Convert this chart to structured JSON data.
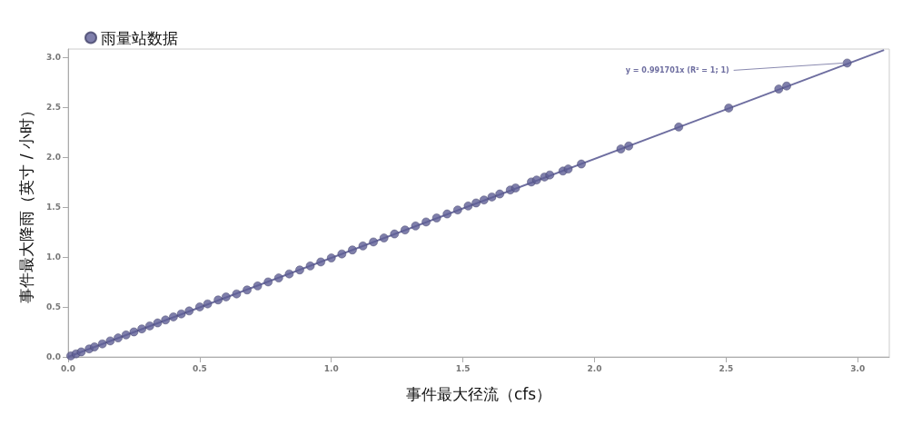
{
  "chart_data": {
    "type": "scatter",
    "xlabel": "事件最大径流（cfs）",
    "ylabel": "事件最大降雨（英寸 / 小时）",
    "xlim": [
      0,
      3.12
    ],
    "ylim": [
      0,
      3.08
    ],
    "xticks": [
      {
        "value": 0,
        "label": "0.0"
      },
      {
        "value": 0.5,
        "label": "0.5"
      },
      {
        "value": 1,
        "label": "1.0"
      },
      {
        "value": 1.5,
        "label": "1.5"
      },
      {
        "value": 2,
        "label": "2.0"
      },
      {
        "value": 2.5,
        "label": "2.5"
      },
      {
        "value": 3,
        "label": "3.0"
      }
    ],
    "yticks": [
      {
        "value": 0,
        "label": "0.0"
      },
      {
        "value": 0.5,
        "label": "0.5"
      },
      {
        "value": 1,
        "label": "1.0"
      },
      {
        "value": 1.5,
        "label": "1.5"
      },
      {
        "value": 2,
        "label": "2.0"
      },
      {
        "value": 2.5,
        "label": "2.5"
      },
      {
        "value": 3,
        "label": "3.0"
      }
    ],
    "grid": false,
    "legend": "top left",
    "series": [
      {
        "name": "雨量站数据",
        "marker": "circle",
        "color": "#5f5f96",
        "x": [
          0.01,
          0.03,
          0.05,
          0.08,
          0.1,
          0.13,
          0.16,
          0.19,
          0.22,
          0.25,
          0.28,
          0.31,
          0.34,
          0.37,
          0.4,
          0.43,
          0.46,
          0.5,
          0.53,
          0.57,
          0.6,
          0.64,
          0.68,
          0.72,
          0.76,
          0.8,
          0.84,
          0.88,
          0.92,
          0.96,
          1.0,
          1.04,
          1.08,
          1.12,
          1.16,
          1.2,
          1.24,
          1.28,
          1.32,
          1.36,
          1.4,
          1.44,
          1.48,
          1.52,
          1.55,
          1.58,
          1.61,
          1.64,
          1.68,
          1.7,
          1.76,
          1.78,
          1.81,
          1.83,
          1.88,
          1.9,
          1.95,
          2.1,
          2.13,
          2.32,
          2.51,
          2.7,
          2.73,
          2.96
        ],
        "values": [
          0.01,
          0.03,
          0.05,
          0.08,
          0.1,
          0.13,
          0.16,
          0.19,
          0.22,
          0.25,
          0.28,
          0.31,
          0.34,
          0.37,
          0.4,
          0.43,
          0.46,
          0.5,
          0.53,
          0.57,
          0.6,
          0.63,
          0.67,
          0.71,
          0.75,
          0.79,
          0.83,
          0.87,
          0.91,
          0.95,
          0.99,
          1.03,
          1.07,
          1.11,
          1.15,
          1.19,
          1.23,
          1.27,
          1.31,
          1.35,
          1.39,
          1.43,
          1.47,
          1.51,
          1.54,
          1.57,
          1.6,
          1.63,
          1.67,
          1.69,
          1.75,
          1.77,
          1.8,
          1.82,
          1.86,
          1.88,
          1.93,
          2.08,
          2.11,
          2.3,
          2.49,
          2.68,
          2.71,
          2.94
        ]
      },
      {
        "type": "line",
        "marker": "none",
        "color": "#6e6ea0",
        "x": [
          0,
          3.1
        ],
        "values": [
          0,
          3.07
        ]
      }
    ],
    "annotations": [
      {
        "text": "y = 0.991701x (R² = 1; 1)",
        "x": 2.96,
        "y": 2.94
      }
    ]
  }
}
